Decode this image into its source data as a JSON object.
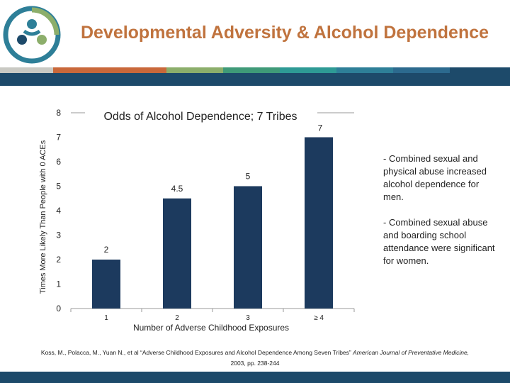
{
  "header": {
    "title": "Developmental Adversity & Alcohol Dependence"
  },
  "theme": {
    "title_color": "#c0733e",
    "band_color": "#1d4a6a",
    "bar_color": "#1c3a5e",
    "stripe_colors": [
      "#c9c9c3",
      "#c9683a",
      "#c9683a",
      "#8cae6b",
      "#3f9a78",
      "#2e9a95",
      "#2e7f98",
      "#2c6a8e",
      "#1d4a6a"
    ]
  },
  "logo": {
    "icon": "three-people-circle-logo-icon"
  },
  "chart_data": {
    "type": "bar",
    "title": "Odds of Alcohol Dependence; 7 Tribes",
    "xlabel": "Number of Adverse Childhood Exposures",
    "ylabel": "Times More Likely Than People with 0 ACEs",
    "categories": [
      "1",
      "2",
      "3",
      "≥ 4"
    ],
    "values": [
      2,
      4.5,
      5,
      7
    ],
    "data_labels": [
      "2",
      "4.5",
      "5",
      "7"
    ],
    "ylim": [
      0,
      8
    ],
    "yticks": [
      "0",
      "1",
      "2",
      "3",
      "4",
      "5",
      "6",
      "7",
      "8"
    ],
    "grid": false,
    "legend": "none"
  },
  "notes": [
    "- Combined sexual and physical abuse increased alcohol dependence for men.",
    "- Combined sexual abuse and boarding school attendance were significant for women."
  ],
  "citation": {
    "text": "Koss, M., Polacca, M., Yuan N., et al “Adverse Childhood Exposures and Alcohol Dependence Among Seven Tribes”",
    "journal": "American Journal of Preventative Medicine,",
    "pages": "2003, pp. 238-244"
  }
}
